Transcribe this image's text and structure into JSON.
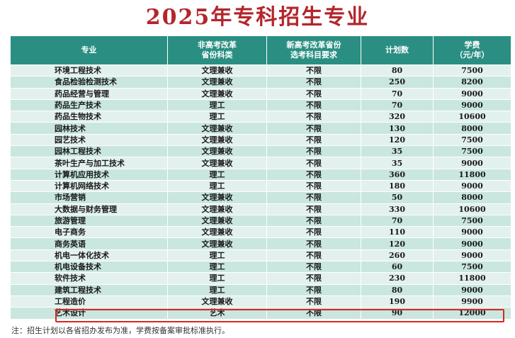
{
  "title": "2025年专科招生专业",
  "headers": {
    "major": "专业",
    "category_line1": "非高考改革",
    "category_line2": "省份科类",
    "subject_line1": "新高考改革省份",
    "subject_line2": "选考科目要求",
    "plan": "计划数",
    "fee_line1": "学费",
    "fee_line2": "（元/年）"
  },
  "rows": [
    {
      "major": "环境工程技术",
      "category": "文理兼收",
      "subject": "不限",
      "plan": "80",
      "fee": "7500"
    },
    {
      "major": "食品检验检测技术",
      "category": "文理兼收",
      "subject": "不限",
      "plan": "250",
      "fee": "8200"
    },
    {
      "major": "药品经营与管理",
      "category": "文理兼收",
      "subject": "不限",
      "plan": "70",
      "fee": "9000"
    },
    {
      "major": "药品生产技术",
      "category": "理工",
      "subject": "不限",
      "plan": "70",
      "fee": "9000"
    },
    {
      "major": "药品生物技术",
      "category": "理工",
      "subject": "不限",
      "plan": "320",
      "fee": "10600"
    },
    {
      "major": "园林技术",
      "category": "文理兼收",
      "subject": "不限",
      "plan": "130",
      "fee": "8000"
    },
    {
      "major": "园艺技术",
      "category": "文理兼收",
      "subject": "不限",
      "plan": "120",
      "fee": "7500"
    },
    {
      "major": "园林工程技术",
      "category": "文理兼收",
      "subject": "不限",
      "plan": "35",
      "fee": "7500"
    },
    {
      "major": "茶叶生产与加工技术",
      "category": "文理兼收",
      "subject": "不限",
      "plan": "35",
      "fee": "9000"
    },
    {
      "major": "计算机应用技术",
      "category": "理工",
      "subject": "不限",
      "plan": "360",
      "fee": "11800"
    },
    {
      "major": "计算机网络技术",
      "category": "理工",
      "subject": "不限",
      "plan": "180",
      "fee": "9000"
    },
    {
      "major": "市场营销",
      "category": "文理兼收",
      "subject": "不限",
      "plan": "50",
      "fee": "8000"
    },
    {
      "major": "大数据与财务管理",
      "category": "文理兼收",
      "subject": "不限",
      "plan": "330",
      "fee": "10600"
    },
    {
      "major": "旅游管理",
      "category": "文理兼收",
      "subject": "不限",
      "plan": "70",
      "fee": "7500"
    },
    {
      "major": "电子商务",
      "category": "文理兼收",
      "subject": "不限",
      "plan": "110",
      "fee": "9000"
    },
    {
      "major": "商务英语",
      "category": "文理兼收",
      "subject": "不限",
      "plan": "120",
      "fee": "9000"
    },
    {
      "major": "机电一体化技术",
      "category": "理工",
      "subject": "不限",
      "plan": "260",
      "fee": "9000"
    },
    {
      "major": "机电设备技术",
      "category": "理工",
      "subject": "不限",
      "plan": "60",
      "fee": "7500"
    },
    {
      "major": "软件技术",
      "category": "理工",
      "subject": "不限",
      "plan": "230",
      "fee": "11800"
    },
    {
      "major": "建筑工程技术",
      "category": "理工",
      "subject": "不限",
      "plan": "80",
      "fee": "9000"
    },
    {
      "major": "工程造价",
      "category": "文理兼收",
      "subject": "不限",
      "plan": "190",
      "fee": "9900"
    },
    {
      "major": "艺术设计",
      "category": "艺术",
      "subject": "不限",
      "plan": "90",
      "fee": "12000"
    }
  ],
  "note": "注：招生计划以各省招办发布为准，学费按备案审批标准执行。",
  "colors": {
    "title": "#b3262c",
    "header_bg": "#2a8f82",
    "row_light": "#e2f1ed",
    "row_dark": "#c9e6df",
    "highlight_border": "#e0231f"
  }
}
